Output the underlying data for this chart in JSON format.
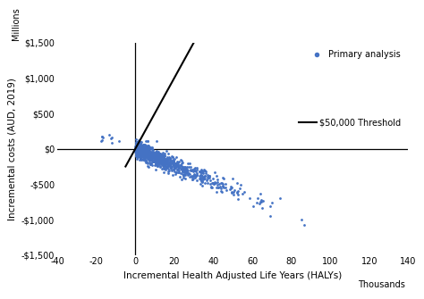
{
  "xlabel": "Incremental Health Adjusted Life Years (HALYs)",
  "ylabel": "Incremental costs (AUD, 2019)",
  "ylabel_millions": "Millions",
  "xlabel_thousands": "Thousands",
  "xlim": [
    -40,
    140
  ],
  "ylim": [
    -1500,
    1500
  ],
  "xticks": [
    -40,
    -20,
    0,
    20,
    40,
    60,
    80,
    100,
    120,
    140
  ],
  "yticks": [
    -1500,
    -1000,
    -500,
    0,
    500,
    1000,
    1500
  ],
  "dot_color": "#4472C4",
  "dot_size": 4,
  "threshold_label": "$50,000 Threshold",
  "legend_label": "Primary analysis",
  "background_color": "#ffffff",
  "seed": 42,
  "n_main": 990,
  "n_ul": 10,
  "threshold_slope": 50,
  "scatter_slope": -11.5,
  "scatter_spread_y": 60
}
